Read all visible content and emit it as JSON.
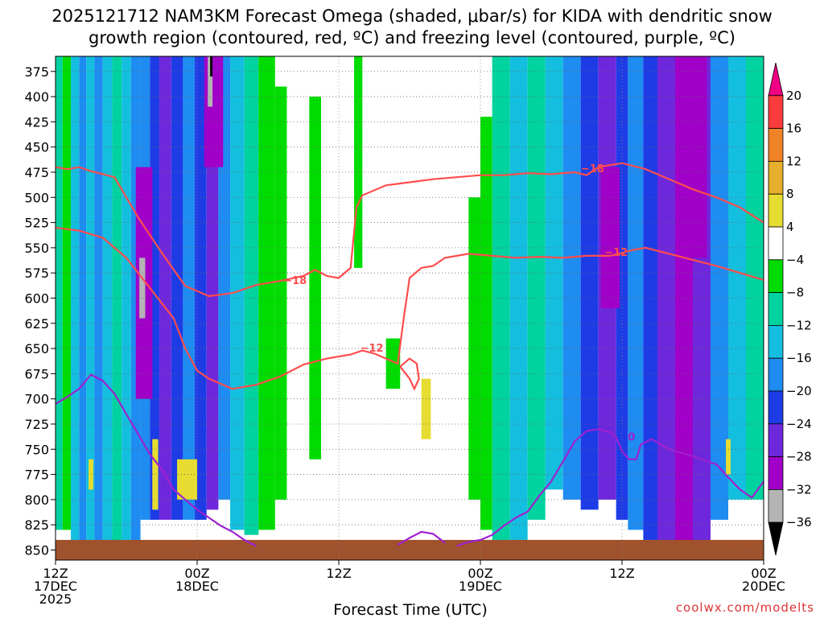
{
  "title_line1": "2025121712 NAM3KM Forecast Omega (shaded, μbar/s) for KIDA with dendritic snow",
  "title_line2": "growth region (contoured, red, ºC) and freezing level (contoured, purple, ºC)",
  "credit": "coolwx.com/modelts",
  "colors": {
    "dgz_line": "#ff4d4d",
    "freezing_line": "#a020d0",
    "terrain": "#a0522d"
  },
  "chart_data": {
    "type": "heatmap",
    "title": "2025121712 NAM3KM Forecast Omega (shaded, μbar/s) for KIDA with dendritic snow growth region (contoured, red, ºC) and freezing level (contoured, purple, ºC)",
    "xlabel": "Forecast Time (UTC)",
    "ylabel": "",
    "x_ticks": [
      {
        "hour": 0,
        "lines": [
          "12Z",
          "17DEC",
          "2025"
        ]
      },
      {
        "hour": 12,
        "lines": [
          "00Z",
          "18DEC"
        ]
      },
      {
        "hour": 24,
        "lines": [
          "12Z"
        ]
      },
      {
        "hour": 36,
        "lines": [
          "00Z",
          "19DEC"
        ]
      },
      {
        "hour": 48,
        "lines": [
          "12Z"
        ]
      },
      {
        "hour": 60,
        "lines": [
          "00Z",
          "20DEC"
        ]
      }
    ],
    "xlim_hours": [
      0,
      60
    ],
    "ylim_mb": [
      360,
      860
    ],
    "y_ticks": [
      375,
      400,
      425,
      450,
      475,
      500,
      525,
      550,
      575,
      600,
      625,
      650,
      675,
      700,
      725,
      750,
      775,
      800,
      825,
      850
    ],
    "colorbar": {
      "levels": [
        -36,
        -32,
        -28,
        -24,
        -20,
        -16,
        -12,
        -8,
        -4,
        4,
        8,
        12,
        16,
        20
      ],
      "labels": [
        "20",
        "16",
        "12",
        "8",
        "4",
        "−4",
        "−8",
        "−12",
        "−16",
        "−20",
        "−24",
        "−28",
        "−32",
        "−36"
      ],
      "colors": [
        {
          "range": [
            -40,
            -36
          ],
          "color": "#000000"
        },
        {
          "range": [
            -36,
            -32
          ],
          "color": "#b4b4b4"
        },
        {
          "range": [
            -32,
            -28
          ],
          "color": "#a000c8"
        },
        {
          "range": [
            -28,
            -24
          ],
          "color": "#6e28dc"
        },
        {
          "range": [
            -24,
            -20
          ],
          "color": "#1e3ce6"
        },
        {
          "range": [
            -20,
            -16
          ],
          "color": "#1e8cf0"
        },
        {
          "range": [
            -16,
            -12
          ],
          "color": "#14bede"
        },
        {
          "range": [
            -12,
            -8
          ],
          "color": "#00d2a0"
        },
        {
          "range": [
            -8,
            -4
          ],
          "color": "#00dc00"
        },
        {
          "range": [
            -4,
            4
          ],
          "color": "#ffffff"
        },
        {
          "range": [
            4,
            8
          ],
          "color": "#e6dc32"
        },
        {
          "range": [
            8,
            12
          ],
          "color": "#e6af2d"
        },
        {
          "range": [
            12,
            16
          ],
          "color": "#f08228"
        },
        {
          "range": [
            16,
            20
          ],
          "color": "#fa3c3c"
        },
        {
          "range": [
            20,
            24
          ],
          "color": "#f00082"
        }
      ]
    },
    "omega_bands": [
      {
        "t0": 0.0,
        "t1": 0.6,
        "top": 360,
        "bottom": 830,
        "value": -10
      },
      {
        "t0": 0.6,
        "t1": 1.3,
        "top": 360,
        "bottom": 830,
        "value": -6
      },
      {
        "t0": 1.3,
        "t1": 2.0,
        "top": 360,
        "bottom": 845,
        "value": -14
      },
      {
        "t0": 2.0,
        "t1": 2.6,
        "top": 360,
        "bottom": 845,
        "value": -18
      },
      {
        "t0": 2.6,
        "t1": 3.3,
        "top": 360,
        "bottom": 845,
        "value": -14
      },
      {
        "t0": 3.3,
        "t1": 4.0,
        "top": 360,
        "bottom": 845,
        "value": -18
      },
      {
        "t0": 4.0,
        "t1": 4.8,
        "top": 360,
        "bottom": 845,
        "value": -14
      },
      {
        "t0": 4.8,
        "t1": 5.6,
        "top": 360,
        "bottom": 845,
        "value": -10
      },
      {
        "t0": 5.6,
        "t1": 6.4,
        "top": 360,
        "bottom": 845,
        "value": -14
      },
      {
        "t0": 6.4,
        "t1": 7.2,
        "top": 360,
        "bottom": 845,
        "value": -18
      },
      {
        "t0": 7.2,
        "t1": 8.0,
        "top": 360,
        "bottom": 820,
        "value": -18
      },
      {
        "t0": 8.0,
        "t1": 8.8,
        "top": 360,
        "bottom": 820,
        "value": -22
      },
      {
        "t0": 8.8,
        "t1": 9.8,
        "top": 360,
        "bottom": 820,
        "value": -26
      },
      {
        "t0": 9.8,
        "t1": 10.8,
        "top": 360,
        "bottom": 820,
        "value": -22
      },
      {
        "t0": 10.8,
        "t1": 11.8,
        "top": 360,
        "bottom": 820,
        "value": -18
      },
      {
        "t0": 11.8,
        "t1": 12.8,
        "top": 360,
        "bottom": 820,
        "value": -22
      },
      {
        "t0": 12.8,
        "t1": 13.8,
        "top": 360,
        "bottom": 810,
        "value": -26
      },
      {
        "t0": 13.8,
        "t1": 14.8,
        "top": 360,
        "bottom": 800,
        "value": -18
      },
      {
        "t0": 14.8,
        "t1": 16.0,
        "top": 360,
        "bottom": 830,
        "value": -14
      },
      {
        "t0": 16.0,
        "t1": 17.2,
        "top": 360,
        "bottom": 835,
        "value": -10
      },
      {
        "t0": 17.2,
        "t1": 18.6,
        "top": 360,
        "bottom": 830,
        "value": -6
      },
      {
        "t0": 18.6,
        "t1": 19.6,
        "top": 390,
        "bottom": 800,
        "value": -6
      },
      {
        "t0": 21.5,
        "t1": 22.5,
        "top": 400,
        "bottom": 760,
        "value": -6
      },
      {
        "t0": 25.3,
        "t1": 26.0,
        "top": 360,
        "bottom": 570,
        "value": -6
      },
      {
        "t0": 28.0,
        "t1": 29.2,
        "top": 640,
        "bottom": 690,
        "value": -6
      },
      {
        "t0": 35.0,
        "t1": 36.0,
        "top": 500,
        "bottom": 800,
        "value": -6
      },
      {
        "t0": 36.0,
        "t1": 37.0,
        "top": 420,
        "bottom": 830,
        "value": -6
      },
      {
        "t0": 37.0,
        "t1": 38.5,
        "top": 360,
        "bottom": 840,
        "value": -10
      },
      {
        "t0": 38.5,
        "t1": 40.0,
        "top": 360,
        "bottom": 840,
        "value": -14
      },
      {
        "t0": 40.0,
        "t1": 41.5,
        "top": 360,
        "bottom": 820,
        "value": -10
      },
      {
        "t0": 41.5,
        "t1": 43.0,
        "top": 360,
        "bottom": 790,
        "value": -14
      },
      {
        "t0": 43.0,
        "t1": 44.5,
        "top": 360,
        "bottom": 800,
        "value": -18
      },
      {
        "t0": 44.5,
        "t1": 46.0,
        "top": 360,
        "bottom": 810,
        "value": -22
      },
      {
        "t0": 46.0,
        "t1": 47.5,
        "top": 360,
        "bottom": 800,
        "value": -26
      },
      {
        "t0": 47.5,
        "t1": 48.5,
        "top": 360,
        "bottom": 820,
        "value": -22
      },
      {
        "t0": 48.5,
        "t1": 49.8,
        "top": 360,
        "bottom": 830,
        "value": -18
      },
      {
        "t0": 49.8,
        "t1": 51.0,
        "top": 360,
        "bottom": 840,
        "value": -22
      },
      {
        "t0": 51.0,
        "t1": 52.5,
        "top": 360,
        "bottom": 845,
        "value": -26
      },
      {
        "t0": 52.5,
        "t1": 54.0,
        "top": 360,
        "bottom": 845,
        "value": -30
      },
      {
        "t0": 54.0,
        "t1": 55.5,
        "top": 360,
        "bottom": 845,
        "value": -26
      },
      {
        "t0": 55.5,
        "t1": 57.0,
        "top": 360,
        "bottom": 820,
        "value": -18
      },
      {
        "t0": 57.0,
        "t1": 58.5,
        "top": 360,
        "bottom": 800,
        "value": -14
      },
      {
        "t0": 58.5,
        "t1": 60.0,
        "top": 360,
        "bottom": 800,
        "value": -10
      }
    ],
    "omega_cores": [
      {
        "t0": 6.8,
        "t1": 8.2,
        "top": 470,
        "bottom": 700,
        "value": -30
      },
      {
        "t0": 7.1,
        "t1": 7.6,
        "top": 560,
        "bottom": 620,
        "value": -34
      },
      {
        "t0": 12.6,
        "t1": 14.2,
        "top": 360,
        "bottom": 470,
        "value": -30
      },
      {
        "t0": 12.9,
        "t1": 13.3,
        "top": 360,
        "bottom": 410,
        "value": -34
      },
      {
        "t0": 13.1,
        "t1": 13.3,
        "top": 360,
        "bottom": 380,
        "value": -38
      },
      {
        "t0": 46.2,
        "t1": 47.8,
        "top": 470,
        "bottom": 610,
        "value": -30
      },
      {
        "t0": 52.8,
        "t1": 55.2,
        "top": 360,
        "bottom": 560,
        "value": -32
      },
      {
        "t0": 2.8,
        "t1": 3.2,
        "top": 760,
        "bottom": 790,
        "value": 6
      },
      {
        "t0": 8.2,
        "t1": 8.7,
        "top": 740,
        "bottom": 810,
        "value": 6
      },
      {
        "t0": 10.3,
        "t1": 12.0,
        "top": 760,
        "bottom": 800,
        "value": 6
      },
      {
        "t0": 31.0,
        "t1": 31.8,
        "top": 680,
        "bottom": 740,
        "value": 6
      },
      {
        "t0": 56.8,
        "t1": 57.2,
        "top": 740,
        "bottom": 775,
        "value": 6
      }
    ],
    "terrain_mb": 840,
    "contours": [
      {
        "label": "−18",
        "kind": "dgz",
        "points": [
          [
            0,
            470
          ],
          [
            1,
            472
          ],
          [
            2,
            470
          ],
          [
            3,
            474
          ],
          [
            5,
            480
          ],
          [
            7,
            520
          ],
          [
            9,
            555
          ],
          [
            11,
            588
          ],
          [
            13,
            598
          ],
          [
            15,
            595
          ],
          [
            17,
            587
          ],
          [
            19,
            583
          ],
          [
            21,
            578
          ],
          [
            22,
            572
          ],
          [
            23,
            578
          ],
          [
            24,
            580
          ],
          [
            25,
            570
          ],
          [
            25.5,
            510
          ],
          [
            26,
            498
          ],
          [
            28,
            488
          ],
          [
            30,
            485
          ],
          [
            32,
            482
          ],
          [
            34,
            480
          ],
          [
            36,
            478
          ],
          [
            38,
            478
          ],
          [
            40,
            476
          ],
          [
            42,
            477
          ],
          [
            44,
            475
          ],
          [
            45,
            478
          ],
          [
            46,
            470
          ],
          [
            48,
            466
          ],
          [
            50,
            472
          ],
          [
            52,
            482
          ],
          [
            54,
            492
          ],
          [
            56,
            500
          ],
          [
            58,
            510
          ],
          [
            60,
            525
          ]
        ],
        "labelAt": [
          20.3,
          583
        ]
      },
      {
        "label": "−12",
        "kind": "dgz",
        "points": [
          [
            0,
            530
          ],
          [
            2,
            533
          ],
          [
            4,
            540
          ],
          [
            6,
            560
          ],
          [
            8,
            590
          ],
          [
            10,
            620
          ],
          [
            11,
            650
          ],
          [
            12,
            672
          ],
          [
            13,
            680
          ],
          [
            15,
            690
          ],
          [
            17,
            686
          ],
          [
            19,
            678
          ],
          [
            21,
            666
          ],
          [
            23,
            660
          ],
          [
            25,
            656
          ],
          [
            26,
            652
          ],
          [
            27,
            655
          ],
          [
            28,
            660
          ],
          [
            29,
            665
          ],
          [
            29.5,
            620
          ],
          [
            30,
            580
          ],
          [
            31,
            570
          ],
          [
            32,
            568
          ],
          [
            33,
            560
          ],
          [
            35,
            556
          ],
          [
            37,
            558
          ],
          [
            39,
            560
          ],
          [
            41,
            559
          ],
          [
            43,
            560
          ],
          [
            45,
            558
          ],
          [
            47,
            558
          ],
          [
            49,
            552
          ],
          [
            50,
            550
          ],
          [
            52,
            556
          ],
          [
            54,
            562
          ],
          [
            56,
            568
          ],
          [
            58,
            575
          ],
          [
            60,
            582
          ]
        ],
        "labelAt": [
          26.8,
          650
        ]
      },
      {
        "label": "−12",
        "kind": "dgz",
        "points": [
          [
            29.2,
            668
          ],
          [
            30,
            660
          ],
          [
            30.6,
            665
          ],
          [
            30.8,
            680
          ],
          [
            30.4,
            690
          ],
          [
            30,
            680
          ],
          [
            29.2,
            668
          ]
        ],
        "labelAt": null
      },
      {
        "label": "−12",
        "kind": "dgz_label_only",
        "points": [],
        "labelAt": [
          47.5,
          555
        ]
      },
      {
        "label": "−18",
        "kind": "dgz_label_only",
        "points": [],
        "labelAt": [
          45.5,
          472
        ]
      },
      {
        "label": "0",
        "kind": "freezing",
        "points": [
          [
            0,
            705
          ],
          [
            1,
            698
          ],
          [
            2,
            690
          ],
          [
            3,
            676
          ],
          [
            4,
            682
          ],
          [
            5,
            695
          ],
          [
            6,
            715
          ],
          [
            7,
            735
          ],
          [
            8,
            755
          ],
          [
            9,
            770
          ],
          [
            10,
            790
          ],
          [
            11,
            800
          ],
          [
            12,
            810
          ],
          [
            13,
            818
          ],
          [
            14,
            826
          ],
          [
            15,
            832
          ],
          [
            16,
            840
          ],
          [
            17,
            846
          ]
        ],
        "labelAt": null
      },
      {
        "label": "0",
        "kind": "freezing",
        "points": [
          [
            29,
            845
          ],
          [
            30,
            838
          ],
          [
            31,
            832
          ],
          [
            32,
            834
          ],
          [
            33,
            843
          ]
        ],
        "labelAt": null
      },
      {
        "label": "0",
        "kind": "freezing",
        "points": [
          [
            34,
            846
          ],
          [
            35,
            842
          ],
          [
            36,
            840
          ],
          [
            37,
            835
          ],
          [
            38,
            826
          ],
          [
            39,
            818
          ],
          [
            40,
            812
          ],
          [
            41,
            796
          ],
          [
            42,
            782
          ],
          [
            43,
            762
          ],
          [
            44,
            742
          ],
          [
            45,
            732
          ],
          [
            46,
            730
          ],
          [
            47,
            733
          ],
          [
            47.5,
            738
          ],
          [
            48,
            752
          ],
          [
            48.6,
            760
          ],
          [
            49.2,
            760
          ],
          [
            49.6,
            745
          ],
          [
            50.5,
            740
          ],
          [
            52,
            750
          ],
          [
            54,
            757
          ],
          [
            56,
            765
          ],
          [
            57,
            778
          ],
          [
            58,
            790
          ],
          [
            59,
            798
          ],
          [
            60,
            782
          ]
        ],
        "labelAt": [
          48.8,
          738
        ]
      }
    ]
  }
}
